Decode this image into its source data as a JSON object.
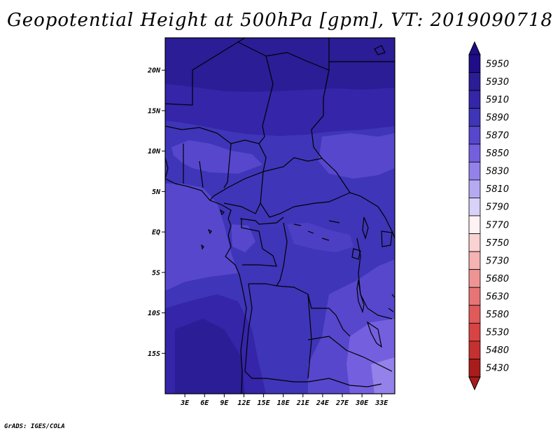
{
  "title": "Geopotential Height at 500hPa [gpm], VT: 2019090718",
  "footer": "GrADS: IGES/COLA",
  "map": {
    "lon_range": [
      0,
      35
    ],
    "lat_range": [
      -20,
      24
    ],
    "lat_ticks": [
      {
        "value": 20,
        "label": "20N"
      },
      {
        "value": 15,
        "label": "15N"
      },
      {
        "value": 10,
        "label": "10N"
      },
      {
        "value": 5,
        "label": "5N"
      },
      {
        "value": 0,
        "label": "EQ"
      },
      {
        "value": -5,
        "label": "5S"
      },
      {
        "value": -10,
        "label": "10S"
      },
      {
        "value": -15,
        "label": "15S"
      }
    ],
    "lon_ticks": [
      {
        "value": 3,
        "label": "3E"
      },
      {
        "value": 6,
        "label": "6E"
      },
      {
        "value": 9,
        "label": "9E"
      },
      {
        "value": 12,
        "label": "12E"
      },
      {
        "value": 15,
        "label": "15E"
      },
      {
        "value": 18,
        "label": "18E"
      },
      {
        "value": 21,
        "label": "21E"
      },
      {
        "value": 24,
        "label": "24E"
      },
      {
        "value": 27,
        "label": "27E"
      },
      {
        "value": 30,
        "label": "30E"
      },
      {
        "value": 33,
        "label": "33E"
      }
    ]
  },
  "colorbar": {
    "levels": [
      {
        "label": "5950",
        "color": "#1f0d8a"
      },
      {
        "label": "5930",
        "color": "#2a1d96"
      },
      {
        "label": "5910",
        "color": "#3425a9"
      },
      {
        "label": "5890",
        "color": "#3f35b8"
      },
      {
        "label": "5870",
        "color": "#5747cc"
      },
      {
        "label": "5850",
        "color": "#7460df"
      },
      {
        "label": "5830",
        "color": "#9481ea"
      },
      {
        "label": "5810",
        "color": "#b5aaf2"
      },
      {
        "label": "5790",
        "color": "#d8d2f8"
      },
      {
        "label": "5770",
        "color": "#fff2f4"
      },
      {
        "label": "5750",
        "color": "#fbd2d2"
      },
      {
        "label": "5730",
        "color": "#f5b3b3"
      },
      {
        "label": "5680",
        "color": "#ef9494"
      },
      {
        "label": "5630",
        "color": "#e87575"
      },
      {
        "label": "5580",
        "color": "#e05a5a"
      },
      {
        "label": "5530",
        "color": "#d84343"
      },
      {
        "label": "5480",
        "color": "#c53030"
      },
      {
        "label": "5430",
        "color": "#a81c1c"
      }
    ]
  }
}
